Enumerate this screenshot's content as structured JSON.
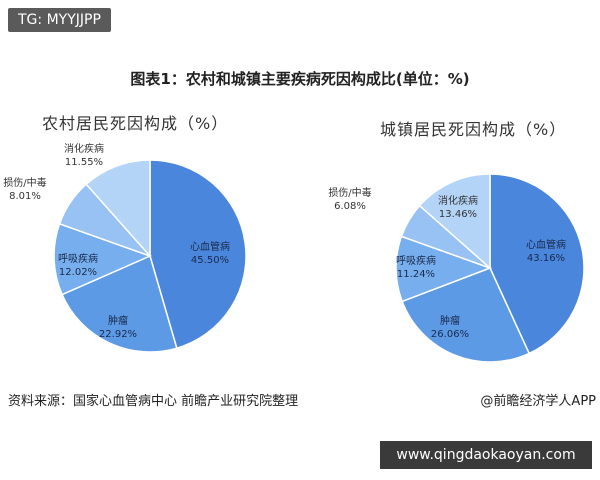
{
  "tag": "TG: MYYJJPP",
  "main_title": "图表1：农村和城镇主要疾病死因构成比(单位：%)",
  "source": "资料来源：国家心血管病中心 前瞻产业研究院整理",
  "brand": "@前瞻经济学人APP",
  "url": "www.qingdaokaoyan.com",
  "colors": {
    "cardio": "#4a86dc",
    "tumor": "#5c9ae6",
    "respiratory": "#77aeee",
    "injury": "#97c2f3",
    "digestive": "#b3d4f7"
  },
  "chart_data": [
    {
      "type": "pie",
      "title": "农村居民死因构成（%）",
      "labels": [
        "心血管病",
        "肿瘤",
        "呼吸疾病",
        "损伤/中毒",
        "消化疾病"
      ],
      "values": [
        45.5,
        22.92,
        12.02,
        8.01,
        11.55
      ],
      "value_labels": [
        "45.50%",
        "22.92%",
        "12.02%",
        "8.01%",
        "11.55%"
      ]
    },
    {
      "type": "pie",
      "title": "城镇居民死因构成（%）",
      "labels": [
        "心血管病",
        "肿瘤",
        "呼吸疾病",
        "损伤/中毒",
        "消化疾病"
      ],
      "values": [
        43.16,
        26.06,
        11.24,
        6.08,
        13.46
      ],
      "value_labels": [
        "43.16%",
        "26.06%",
        "11.24%",
        "6.08%",
        "13.46%"
      ]
    }
  ]
}
